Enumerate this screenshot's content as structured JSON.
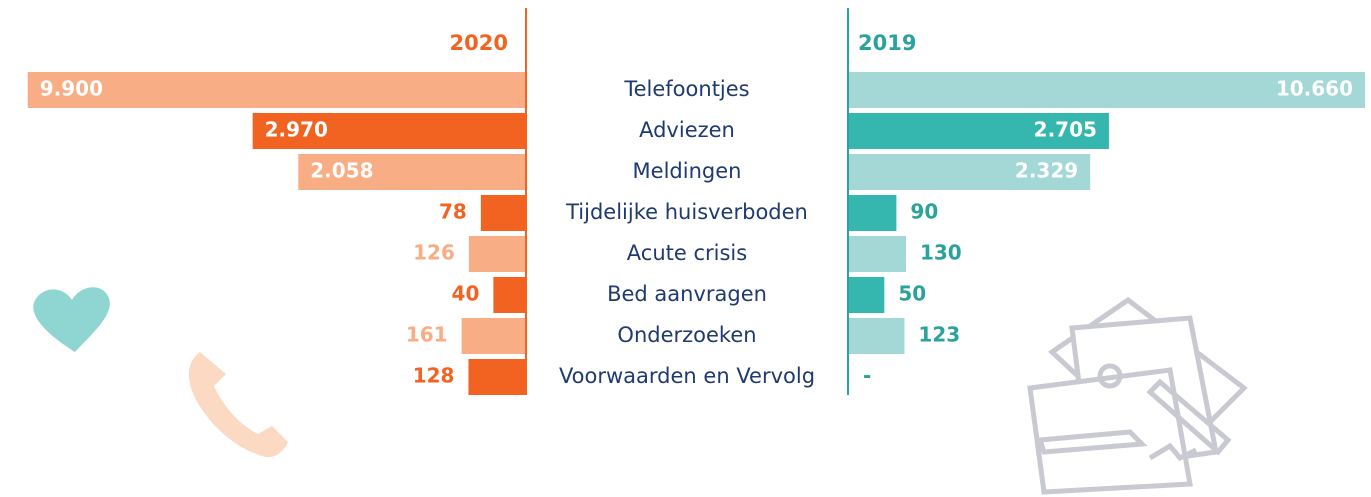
{
  "chart_data": {
    "type": "butterfly",
    "scale": "sqrt",
    "categories": [
      "Telefoontjes",
      "Adviezen",
      "Meldingen",
      "Tijdelijke huisverboden",
      "Acute crisis",
      "Bed aanvragen",
      "Onderzoeken",
      "Voorwaarden en Vervolg"
    ],
    "series": [
      {
        "name": "2020",
        "color": "#f26322",
        "colors": [
          "#f8ad84",
          "#f26322",
          "#f8ad84",
          "#f26322",
          "#f8ad84",
          "#f26322",
          "#f8ad84",
          "#f26322"
        ],
        "label_colors": [
          "#f8ad84",
          "#f26322",
          "#f8ad84",
          "#f26322",
          "#f8ad84",
          "#f26322",
          "#f8ad84",
          "#f26322"
        ],
        "values": [
          9900,
          2970,
          2058,
          78,
          126,
          40,
          161,
          128
        ],
        "value_labels": [
          "9.900",
          "2.970",
          "2.058",
          "78",
          "126",
          "40",
          "161",
          "128"
        ]
      },
      {
        "name": "2019",
        "color": "#2aa39c",
        "colors": [
          "#a3d8d6",
          "#35b7b0",
          "#a3d8d6",
          "#35b7b0",
          "#a3d8d6",
          "#35b7b0",
          "#a3d8d6",
          "#35b7b0"
        ],
        "label_colors": [
          "#2aa39c",
          "#2aa39c",
          "#2aa39c",
          "#2aa39c",
          "#2aa39c",
          "#2aa39c",
          "#2aa39c",
          "#2aa39c"
        ],
        "values": [
          10660,
          2705,
          2329,
          90,
          130,
          50,
          123,
          null
        ],
        "value_labels": [
          "10.660",
          "2.705",
          "2.329",
          "90",
          "130",
          "50",
          "123",
          "-"
        ]
      }
    ]
  }
}
